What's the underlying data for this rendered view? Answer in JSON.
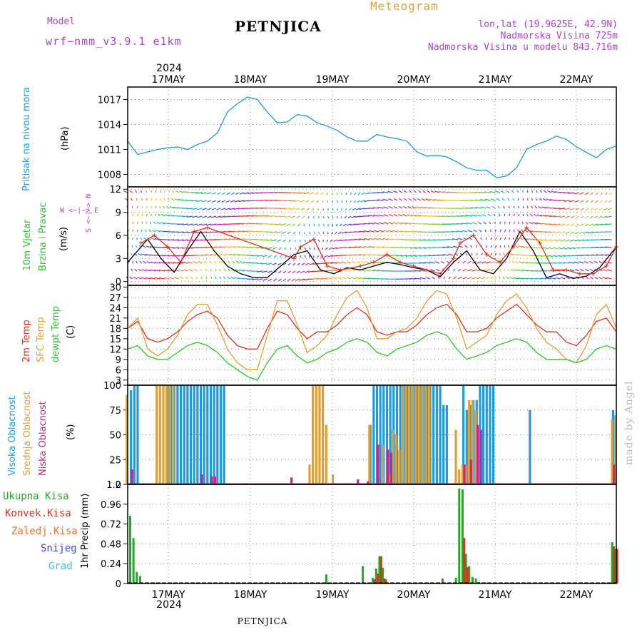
{
  "header": {
    "model_label": "Model",
    "model_name": "wrf−nmm_v3.9.1  e1km",
    "title": "PETNJICA",
    "meteogram_label": "Meteogram",
    "coords": "lon,lat (19.9625E, 42.9N)",
    "altitude": "Nadmorska Visina 725m",
    "model_altitude": "Nadmorska Visina u modelu 843.716m",
    "footer": "PETNJICA",
    "watermark": "made by Angel"
  },
  "colors": {
    "pressure": "#1E9BE0",
    "wind_speed": "#000000",
    "gust": "#E0301E",
    "temp2m": "#E0301E",
    "sfc_temp": "#E0A030",
    "dewpoint": "#22CC22",
    "high_cloud": "#1E9BE0",
    "mid_cloud": "#E0A030",
    "low_cloud": "#D0208E",
    "total_precip": "#22AA22",
    "conv_precip": "#E0301E",
    "header_purple": "#B040D0",
    "meteogram_orange": "#E0A030",
    "watermark": "#BBBBBB"
  },
  "time_axis": {
    "year": "2024",
    "days": [
      "17MAY",
      "18MAY",
      "19MAY",
      "20MAY",
      "21MAY",
      "22MAY"
    ]
  },
  "panels": {
    "pressure": {
      "label": "Pritisak na nivou mora",
      "unit": "(hPa)"
    },
    "wind": {
      "label1": "10m Vjetar",
      "label2": "Brzina i Pravac",
      "unit": "(m/s)",
      "compass_ns": "S <−|−> N",
      "compass_we": "W <−|−> E"
    },
    "temperature": {
      "label1": "2m Temp",
      "label2": "SFC Temp",
      "label3": "dewpt Temp",
      "unit": "(C)"
    },
    "clouds": {
      "label1": "Visoka Oblacnost",
      "label2": "Srednja Oblacnost",
      "label3": "Niska Oblacnost",
      "unit": "(%)"
    },
    "precip": {
      "labels": [
        "Ukupna Kisa",
        "Konvek.Kisa",
        "Zaledj.Kisa",
        "Snijeg",
        "Grad"
      ],
      "unit": "1hr Precip (mm)"
    }
  },
  "chart_data": [
    {
      "type": "line",
      "title": "",
      "ylabel": "(hPa)",
      "x_unit": "hours since 2024-05-16 12:00",
      "ylim": [
        1006.5,
        1018.5
      ],
      "yticks": [
        1008,
        1011,
        1014,
        1017
      ],
      "series": [
        {
          "name": "Pritisak na nivou mora",
          "x": [
            0,
            3,
            6,
            9,
            12,
            15,
            18,
            21,
            24,
            27,
            30,
            33,
            36,
            39,
            42,
            45,
            48,
            51,
            54,
            57,
            60,
            63,
            66,
            69,
            72,
            75,
            78,
            81,
            84,
            87,
            90,
            93,
            96,
            99,
            102,
            105,
            108,
            111,
            114,
            117,
            120,
            123,
            126,
            129,
            132,
            135,
            141,
            144,
            147
          ],
          "values": [
            1012.0,
            1010.4,
            1010.7,
            1011.0,
            1011.2,
            1011.3,
            1011.0,
            1011.6,
            1012.0,
            1013.0,
            1015.5,
            1016.5,
            1017.3,
            1017.0,
            1015.5,
            1014.2,
            1014.3,
            1015.2,
            1015.0,
            1014.2,
            1013.8,
            1013.3,
            1012.5,
            1012.0,
            1012.0,
            1012.8,
            1012.5,
            1012.3,
            1012.0,
            1010.7,
            1010.2,
            1010.3,
            1010.1,
            1009.5,
            1008.8,
            1008.5,
            1008.5,
            1007.6,
            1007.8,
            1008.8,
            1011.0,
            1011.6,
            1012.0,
            1012.6,
            1012.2,
            1011.3,
            1010.0,
            1011.0,
            1011.4
          ]
        }
      ]
    },
    {
      "type": "line",
      "title": "",
      "ylabel": "(m/s)",
      "x_unit": "hours since 2024-05-16 12:00",
      "ylim": [
        -0.5,
        12.3
      ],
      "yticks": [
        0,
        3,
        6,
        9,
        12
      ],
      "series": [
        {
          "name": "wind speed",
          "x": [
            0,
            6,
            10,
            14,
            18,
            22,
            26,
            30,
            34,
            38,
            42,
            46,
            50,
            54,
            58,
            62,
            66,
            70,
            74,
            78,
            82,
            86,
            90,
            94,
            98,
            102,
            106,
            110,
            114,
            118,
            122,
            126,
            130,
            134,
            138,
            142,
            147
          ],
          "values": [
            2.5,
            5.5,
            3.0,
            1.2,
            4.0,
            6.5,
            4.0,
            2.0,
            1.0,
            0.5,
            0.5,
            2.0,
            3.5,
            4.0,
            1.5,
            1.0,
            1.8,
            1.5,
            2.0,
            2.5,
            2.2,
            1.8,
            1.5,
            0.6,
            2.5,
            4.0,
            1.5,
            1.0,
            3.0,
            6.5,
            4.0,
            0.5,
            1.0,
            0.4,
            0.7,
            1.8,
            4.5
          ]
        },
        {
          "name": "gust",
          "x": [
            4,
            8,
            12,
            16,
            20,
            24,
            50,
            52,
            56,
            60,
            64,
            70,
            74,
            78,
            82,
            86,
            90,
            94,
            98,
            100,
            104,
            108,
            112,
            116,
            120,
            124,
            128,
            132,
            136,
            140,
            144,
            147
          ],
          "values": [
            5.0,
            6.0,
            4.5,
            2.5,
            6.5,
            7.0,
            3.0,
            4.5,
            5.5,
            2.0,
            1.5,
            2.0,
            2.5,
            3.5,
            2.5,
            2.0,
            1.5,
            1.0,
            3.0,
            5.0,
            6.0,
            3.5,
            2.5,
            4.5,
            7.0,
            5.0,
            1.5,
            1.5,
            1.0,
            1.0,
            2.0,
            4.5
          ]
        }
      ]
    },
    {
      "type": "line",
      "title": "",
      "ylabel": "(C)",
      "x_unit": "hours since 2024-05-16 12:00",
      "ylim": [
        1.5,
        30.5
      ],
      "yticks": [
        3,
        6,
        9,
        12,
        15,
        18,
        21,
        24,
        27,
        30
      ],
      "series": [
        {
          "name": "2m Temp",
          "x": [
            0,
            3,
            6,
            9,
            12,
            15,
            18,
            21,
            24,
            27,
            30,
            33,
            36,
            39,
            42,
            45,
            48,
            51,
            54,
            57,
            60,
            63,
            66,
            69,
            72,
            75,
            78,
            81,
            84,
            87,
            90,
            93,
            96,
            99,
            102,
            105,
            108,
            111,
            114,
            117,
            120,
            123,
            126,
            129,
            132,
            135,
            138,
            141,
            144,
            147
          ],
          "values": [
            18,
            20,
            15,
            14,
            15,
            17,
            20,
            22,
            23,
            21,
            16,
            13,
            12,
            12,
            18,
            23,
            22,
            18,
            15,
            17,
            17,
            19,
            22,
            24,
            22,
            17,
            16,
            17,
            17,
            19,
            22,
            24,
            25,
            22,
            17,
            17,
            18,
            21,
            23,
            25,
            22,
            19,
            17,
            17,
            14,
            13,
            16,
            20,
            21,
            17
          ]
        },
        {
          "name": "SFC Temp",
          "x": [
            0,
            3,
            6,
            9,
            12,
            15,
            18,
            21,
            24,
            27,
            30,
            33,
            36,
            39,
            42,
            45,
            48,
            51,
            54,
            57,
            60,
            63,
            66,
            69,
            72,
            75,
            78,
            81,
            84,
            87,
            90,
            93,
            96,
            99,
            102,
            105,
            108,
            111,
            114,
            117,
            120,
            123,
            126,
            129,
            132,
            135,
            138,
            141,
            144,
            147
          ],
          "values": [
            18,
            21,
            12,
            10,
            12,
            16,
            22,
            25,
            25,
            19,
            12,
            8,
            6,
            6,
            16,
            26,
            26,
            19,
            11,
            13,
            16,
            22,
            27,
            29,
            24,
            15,
            15,
            17,
            18,
            21,
            26,
            29,
            28,
            21,
            12,
            14,
            16,
            22,
            26,
            28,
            24,
            18,
            14,
            12,
            9,
            8,
            13,
            22,
            25,
            18
          ]
        },
        {
          "name": "dewpt Temp",
          "x": [
            0,
            3,
            6,
            9,
            12,
            15,
            18,
            21,
            24,
            27,
            30,
            33,
            36,
            39,
            42,
            45,
            48,
            51,
            54,
            57,
            60,
            63,
            66,
            69,
            72,
            75,
            78,
            81,
            84,
            87,
            90,
            93,
            96,
            99,
            102,
            105,
            108,
            111,
            114,
            117,
            120,
            123,
            126,
            129,
            132,
            135,
            138,
            141,
            144,
            147
          ],
          "values": [
            12,
            13,
            10,
            9,
            9,
            11,
            13,
            14,
            13,
            11,
            8,
            6,
            4,
            3,
            8,
            12,
            13,
            10,
            8,
            9,
            11,
            12,
            14,
            15,
            14,
            11,
            10,
            12,
            13,
            14,
            16,
            17,
            16,
            12,
            9,
            10,
            11,
            13,
            14,
            15,
            14,
            11,
            9,
            9,
            9,
            8,
            9,
            12,
            13,
            12
          ]
        }
      ]
    },
    {
      "type": "bar",
      "title": "",
      "ylabel": "(%)",
      "x_unit": "hours since 2024-05-16 12:00",
      "ylim": [
        0,
        100
      ],
      "yticks": [
        0,
        25,
        50,
        75,
        100
      ],
      "series": [
        {
          "name": "Visoka Oblacnost",
          "x": [
            1,
            2,
            3,
            12,
            13,
            14,
            15,
            16,
            17,
            18,
            19,
            20,
            21,
            22,
            23,
            24,
            25,
            26,
            27,
            28,
            29,
            73,
            74,
            75,
            76,
            77,
            78,
            79,
            80,
            81,
            82,
            83,
            84,
            85,
            86,
            87,
            88,
            89,
            90,
            91,
            92,
            93,
            94,
            95,
            96,
            101,
            102,
            103,
            104,
            105,
            106,
            107,
            108,
            109,
            110,
            121,
            146
          ],
          "values": [
            95,
            100,
            100,
            100,
            100,
            100,
            100,
            100,
            100,
            100,
            100,
            100,
            100,
            100,
            100,
            100,
            100,
            100,
            100,
            100,
            100,
            60,
            100,
            100,
            100,
            100,
            100,
            100,
            100,
            100,
            100,
            100,
            100,
            100,
            100,
            100,
            100,
            100,
            100,
            100,
            100,
            100,
            100,
            80,
            80,
            100,
            75,
            80,
            85,
            85,
            100,
            100,
            100,
            100,
            100,
            75,
            75
          ]
        },
        {
          "name": "Srednja Oblacnost",
          "x": [
            0,
            9,
            10,
            11,
            12,
            13,
            14,
            55,
            56,
            57,
            58,
            59,
            60,
            62,
            73,
            77,
            79,
            80,
            81,
            82,
            83,
            84,
            85,
            86,
            87,
            88,
            89,
            90,
            91,
            99,
            100,
            101,
            102,
            103,
            104,
            105,
            146,
            147
          ],
          "values": [
            90,
            100,
            100,
            100,
            100,
            100,
            100,
            20,
            100,
            100,
            100,
            100,
            60,
            10,
            60,
            40,
            10,
            55,
            50,
            35,
            100,
            100,
            100,
            100,
            100,
            100,
            100,
            100,
            100,
            55,
            15,
            20,
            20,
            85,
            85,
            75,
            65,
            70
          ]
        },
        {
          "name": "Niska Oblacnost",
          "x": [
            1,
            22,
            25,
            26,
            49,
            69,
            72,
            75,
            78,
            79,
            101,
            103,
            105,
            106,
            146
          ],
          "values": [
            15,
            10,
            8,
            8,
            7,
            5,
            3,
            40,
            35,
            32,
            20,
            25,
            60,
            55,
            20
          ]
        }
      ]
    },
    {
      "type": "bar",
      "title": "",
      "ylabel": "1hr Precip (mm)",
      "x_unit": "hours since 2024-05-16 12:00",
      "ylim": [
        0,
        1.2
      ],
      "yticks": [
        0,
        0.24,
        0.48,
        0.72,
        0.96,
        1.2
      ],
      "series": [
        {
          "name": "Ukupna Kisa",
          "x": [
            1,
            2,
            3,
            4,
            60,
            71,
            74,
            75,
            76,
            77,
            78,
            95,
            99,
            100,
            101,
            102,
            103,
            104,
            105,
            106,
            146,
            147
          ],
          "values": [
            0.82,
            0.55,
            0.14,
            0.09,
            0.11,
            0.21,
            0.07,
            0.18,
            0.33,
            0.19,
            0.05,
            0.06,
            0.07,
            1.15,
            1.14,
            0.36,
            0.21,
            0.08,
            0.06,
            0.02,
            0.5,
            0.42
          ]
        },
        {
          "name": "Konvek.Kisa",
          "x": [
            74,
            75,
            76,
            77,
            101,
            102,
            146,
            147
          ],
          "values": [
            0.05,
            0.12,
            0.33,
            0.06,
            0.55,
            0.2,
            0.45,
            0.42
          ]
        }
      ]
    }
  ]
}
